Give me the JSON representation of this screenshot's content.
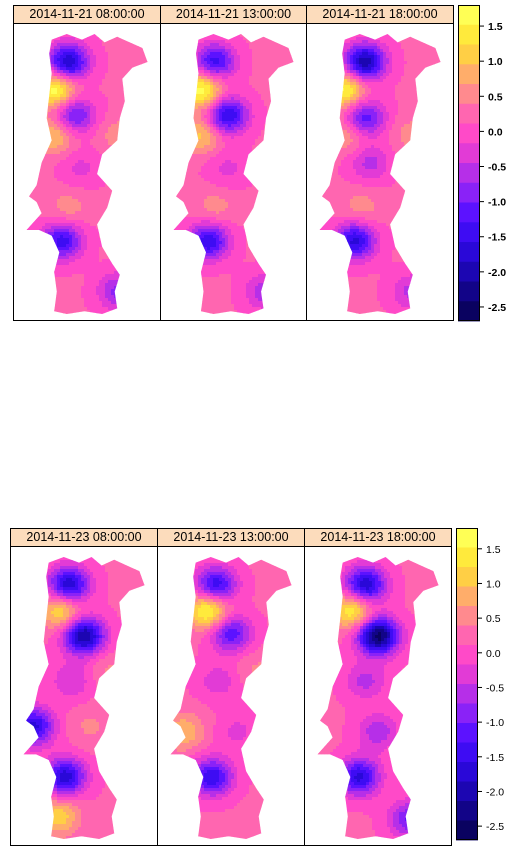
{
  "colors": {
    "palette_top_to_bottom": [
      "#ffff55",
      "#ffea3c",
      "#ffcf45",
      "#ffad6a",
      "#ff8a8e",
      "#ff66b0",
      "#ff4ac8",
      "#e23bd6",
      "#b62fe8",
      "#8a22f7",
      "#5c12ff",
      "#3e0cf3",
      "#2a08d8",
      "#1c06b2",
      "#120488",
      "#0a0260"
    ],
    "strip_background": "#fcdcbc"
  },
  "chart_data": [
    {
      "type": "heatmap",
      "panels": [
        {
          "label": "2014-11-21 08:00:00"
        },
        {
          "label": "2014-11-21 13:00:00"
        },
        {
          "label": "2014-11-21 18:00:00"
        }
      ],
      "colorkey": {
        "range": [
          -2.7,
          1.8
        ],
        "ticks": [
          1.5,
          1.0,
          0.5,
          0.0,
          -0.5,
          -1.0,
          -1.5,
          -2.0,
          -2.5
        ],
        "tick_labels": [
          "1.5",
          "1.0",
          "0.5",
          "0.0",
          "-0.5",
          "-1.0",
          "-1.5",
          "-2.0",
          "-2.5"
        ],
        "bold_labels": true
      },
      "blobs": [
        [
          {
            "lat": 0.1,
            "lon": 0.35,
            "v": -2.0
          },
          {
            "lat": 0.2,
            "lon": 0.25,
            "v": 1.6
          },
          {
            "lat": 0.29,
            "lon": 0.4,
            "v": -1.3
          },
          {
            "lat": 0.36,
            "lon": 0.24,
            "v": 0.9
          },
          {
            "lat": 0.48,
            "lon": 0.45,
            "v": -0.4
          },
          {
            "lat": 0.62,
            "lon": 0.35,
            "v": 0.4
          },
          {
            "lat": 0.74,
            "lon": 0.3,
            "v": -1.6
          },
          {
            "lat": 0.92,
            "lon": 0.75,
            "v": -1.0
          },
          {
            "lat": 0.36,
            "lon": 0.75,
            "v": 0.4
          }
        ],
        [
          {
            "lat": 0.1,
            "lon": 0.35,
            "v": -1.6
          },
          {
            "lat": 0.2,
            "lon": 0.25,
            "v": 1.6
          },
          {
            "lat": 0.29,
            "lon": 0.45,
            "v": -1.8
          },
          {
            "lat": 0.36,
            "lon": 0.24,
            "v": 0.9
          },
          {
            "lat": 0.48,
            "lon": 0.45,
            "v": -0.4
          },
          {
            "lat": 0.62,
            "lon": 0.35,
            "v": 0.4
          },
          {
            "lat": 0.74,
            "lon": 0.3,
            "v": -1.7
          },
          {
            "lat": 0.92,
            "lon": 0.75,
            "v": -0.8
          }
        ],
        [
          {
            "lat": 0.1,
            "lon": 0.38,
            "v": -2.2
          },
          {
            "lat": 0.2,
            "lon": 0.22,
            "v": 1.5
          },
          {
            "lat": 0.3,
            "lon": 0.38,
            "v": -1.4
          },
          {
            "lat": 0.36,
            "lon": 0.24,
            "v": 0.6
          },
          {
            "lat": 0.46,
            "lon": 0.42,
            "v": -0.7
          },
          {
            "lat": 0.62,
            "lon": 0.35,
            "v": 0.4
          },
          {
            "lat": 0.74,
            "lon": 0.3,
            "v": -1.8
          },
          {
            "lat": 0.92,
            "lon": 0.75,
            "v": -0.7
          },
          {
            "lat": 0.36,
            "lon": 0.75,
            "v": 0.4
          }
        ]
      ]
    },
    {
      "type": "heatmap",
      "panels": [
        {
          "label": "2014-11-23 08:00:00"
        },
        {
          "label": "2014-11-23 13:00:00"
        },
        {
          "label": "2014-11-23 18:00:00"
        }
      ],
      "colorkey": {
        "range": [
          -2.7,
          1.8
        ],
        "ticks": [
          1.5,
          1.0,
          0.5,
          0.0,
          -0.5,
          -1.0,
          -1.5,
          -2.0,
          -2.5
        ],
        "tick_labels": [
          "1.5",
          "1.0",
          "0.5",
          "0.0",
          "-0.5",
          "-1.0",
          "-1.5",
          "-2.0",
          "-2.5"
        ],
        "bold_labels": false
      },
      "blobs": [
        [
          {
            "lat": 0.1,
            "lon": 0.38,
            "v": -2.0
          },
          {
            "lat": 0.19,
            "lon": 0.32,
            "v": 1.2
          },
          {
            "lat": 0.28,
            "lon": 0.5,
            "v": -2.3
          },
          {
            "lat": 0.44,
            "lon": 0.4,
            "v": -0.6
          },
          {
            "lat": 0.6,
            "lon": 0.1,
            "v": -1.8
          },
          {
            "lat": 0.6,
            "lon": 0.55,
            "v": 0.3
          },
          {
            "lat": 0.78,
            "lon": 0.35,
            "v": -1.9
          },
          {
            "lat": 0.92,
            "lon": 0.3,
            "v": 1.0
          },
          {
            "lat": 0.4,
            "lon": 0.7,
            "v": 0.3
          }
        ],
        [
          {
            "lat": 0.1,
            "lon": 0.38,
            "v": -1.7
          },
          {
            "lat": 0.19,
            "lon": 0.32,
            "v": 1.6
          },
          {
            "lat": 0.27,
            "lon": 0.5,
            "v": -1.4
          },
          {
            "lat": 0.44,
            "lon": 0.4,
            "v": -0.5
          },
          {
            "lat": 0.62,
            "lon": 0.12,
            "v": 0.8
          },
          {
            "lat": 0.62,
            "lon": 0.55,
            "v": -0.4
          },
          {
            "lat": 0.78,
            "lon": 0.35,
            "v": -1.7
          },
          {
            "lat": 0.4,
            "lon": 0.7,
            "v": 0.3
          }
        ],
        [
          {
            "lat": 0.1,
            "lon": 0.4,
            "v": -2.0
          },
          {
            "lat": 0.19,
            "lon": 0.3,
            "v": 1.4
          },
          {
            "lat": 0.28,
            "lon": 0.5,
            "v": -2.7
          },
          {
            "lat": 0.44,
            "lon": 0.4,
            "v": -0.7
          },
          {
            "lat": 0.62,
            "lon": 0.5,
            "v": -0.8
          },
          {
            "lat": 0.78,
            "lon": 0.35,
            "v": -1.8
          },
          {
            "lat": 0.93,
            "lon": 0.75,
            "v": -1.2
          }
        ]
      ]
    }
  ]
}
